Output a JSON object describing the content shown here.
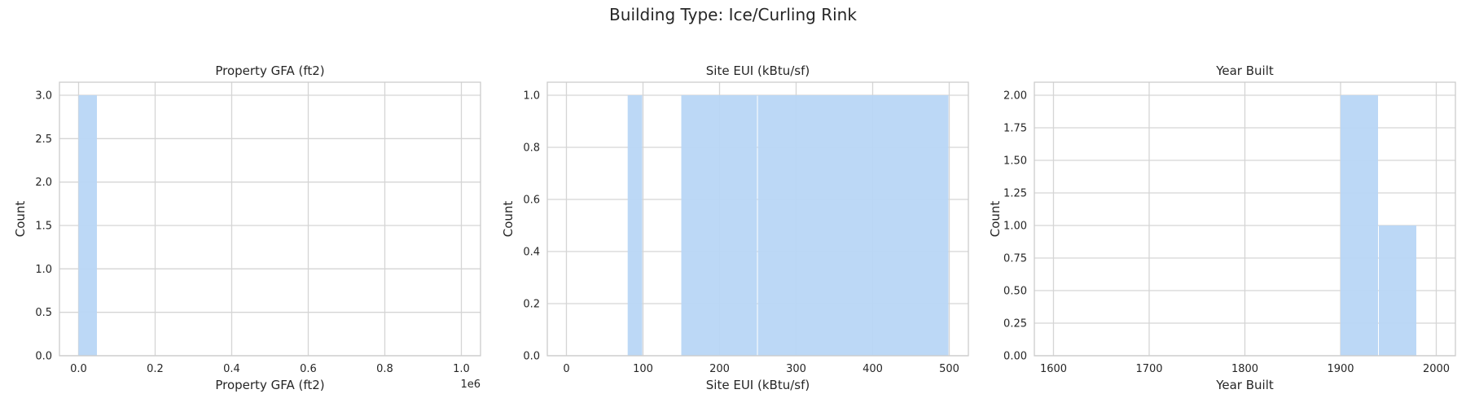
{
  "suptitle": "Building Type: Ice/Curling Rink",
  "colors": {
    "bar": "#b8d6f5",
    "grid": "#d5d5d5",
    "spine": "#cccccc",
    "background": "#ffffff"
  },
  "chart_data": [
    {
      "type": "bar",
      "title": "Property GFA (ft2)",
      "xlabel": "Property GFA (ft2)",
      "ylabel": "Count",
      "x_offset_label": "1e6",
      "xlim": [
        -0.05,
        1.05
      ],
      "ylim": [
        0,
        3.15
      ],
      "xticks": [
        0.0,
        0.2,
        0.4,
        0.6,
        0.8,
        1.0
      ],
      "xtick_labels": [
        "0.0",
        "0.2",
        "0.4",
        "0.6",
        "0.8",
        "1.0"
      ],
      "yticks": [
        0.0,
        0.5,
        1.0,
        1.5,
        2.0,
        2.5,
        3.0
      ],
      "ytick_labels": [
        "0.0",
        "0.5",
        "1.0",
        "1.5",
        "2.0",
        "2.5",
        "3.0"
      ],
      "bins": [
        {
          "start": 0.0,
          "end": 0.05,
          "count": 3
        }
      ]
    },
    {
      "type": "bar",
      "title": "Site EUI (kBtu/sf)",
      "xlabel": "Site EUI (kBtu/sf)",
      "ylabel": "Count",
      "xlim": [
        -25,
        525
      ],
      "ylim": [
        0,
        1.05
      ],
      "xticks": [
        0,
        100,
        200,
        300,
        400,
        500
      ],
      "xtick_labels": [
        "0",
        "100",
        "200",
        "300",
        "400",
        "500"
      ],
      "yticks": [
        0.0,
        0.2,
        0.4,
        0.6,
        0.8,
        1.0
      ],
      "ytick_labels": [
        "0.0",
        "0.2",
        "0.4",
        "0.6",
        "0.8",
        "1.0"
      ],
      "bins": [
        {
          "start": 80,
          "end": 100,
          "count": 1
        },
        {
          "start": 150,
          "end": 250,
          "count": 1
        },
        {
          "start": 250,
          "end": 500,
          "count": 1
        }
      ]
    },
    {
      "type": "bar",
      "title": "Year Built",
      "xlabel": "Year Built",
      "ylabel": "Count",
      "xlim": [
        1580,
        2020
      ],
      "ylim": [
        0,
        2.1
      ],
      "xticks": [
        1600,
        1700,
        1800,
        1900,
        2000
      ],
      "xtick_labels": [
        "1600",
        "1700",
        "1800",
        "1900",
        "2000"
      ],
      "yticks": [
        0.0,
        0.25,
        0.5,
        0.75,
        1.0,
        1.25,
        1.5,
        1.75,
        2.0
      ],
      "ytick_labels": [
        "0.00",
        "0.25",
        "0.50",
        "0.75",
        "1.00",
        "1.25",
        "1.50",
        "1.75",
        "2.00"
      ],
      "bins": [
        {
          "start": 1900,
          "end": 1940,
          "count": 2
        },
        {
          "start": 1940,
          "end": 1980,
          "count": 1
        }
      ]
    }
  ]
}
